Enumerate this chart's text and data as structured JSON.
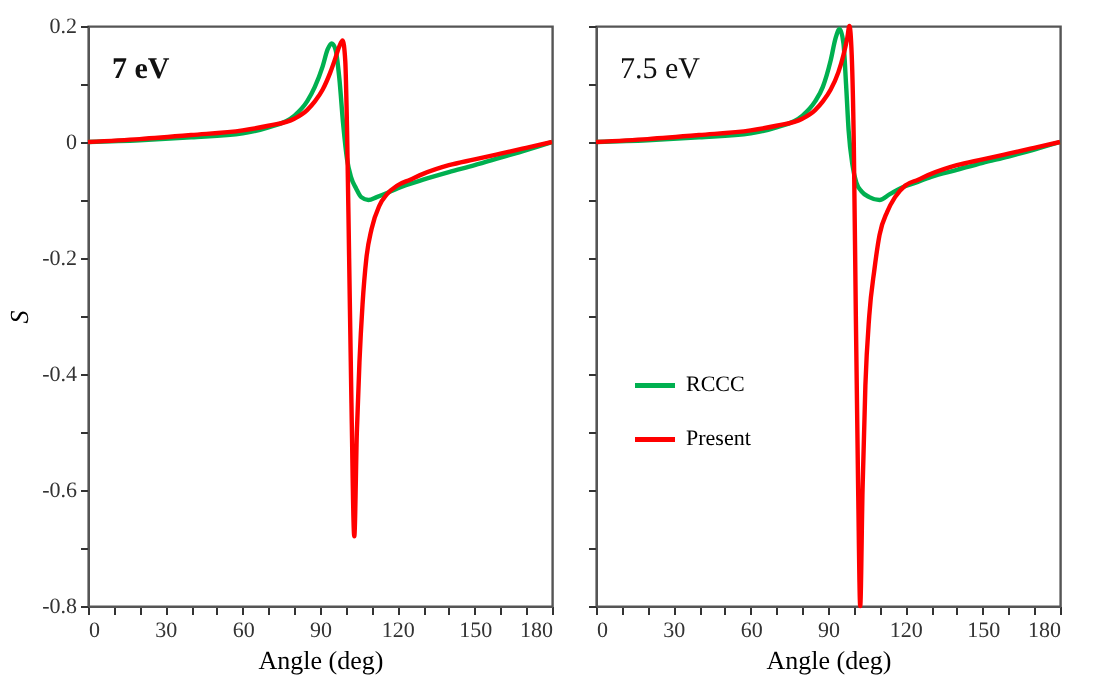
{
  "chart_data": [
    {
      "type": "line",
      "title": "7 eV",
      "xlabel": "Angle (deg)",
      "ylabel": "S",
      "xlim": [
        0,
        180
      ],
      "ylim": [
        -0.8,
        0.2
      ],
      "xticks": [
        0,
        {
          "value": 10,
          "label": null
        },
        {
          "value": 20,
          "label": null
        },
        30,
        {
          "value": 40,
          "label": null
        },
        {
          "value": 50,
          "label": null
        },
        60,
        {
          "value": 70,
          "label": null
        },
        {
          "value": 80,
          "label": null
        },
        90,
        {
          "value": 100,
          "label": null
        },
        {
          "value": 110,
          "label": null
        },
        120,
        {
          "value": 130,
          "label": null
        },
        {
          "value": 140,
          "label": null
        },
        150,
        {
          "value": 160,
          "label": null
        },
        {
          "value": 170,
          "label": null
        },
        180
      ],
      "yticks": [
        -0.8,
        {
          "value": -0.7,
          "label": null
        },
        -0.6,
        {
          "value": -0.5,
          "label": null
        },
        -0.4,
        {
          "value": -0.3,
          "label": null
        },
        -0.2,
        {
          "value": -0.1,
          "label": null
        },
        0,
        {
          "value": 0.1,
          "label": null
        },
        0.2
      ],
      "grid": false,
      "legend": false,
      "series": [
        {
          "color": "#00b050",
          "x": [
            0,
            20,
            40,
            60,
            70,
            80,
            85,
            88,
            91,
            93,
            94.5,
            96,
            97.5,
            99,
            100.5,
            102,
            104,
            106,
            108.8,
            112,
            116,
            120,
            130,
            140,
            150,
            160,
            170,
            180
          ],
          "values": [
            0,
            0.003,
            0.008,
            0.015,
            0.025,
            0.045,
            0.07,
            0.095,
            0.13,
            0.16,
            0.17,
            0.16,
            0.11,
            0.03,
            -0.03,
            -0.06,
            -0.08,
            -0.095,
            -0.1,
            -0.095,
            -0.088,
            -0.08,
            -0.065,
            -0.052,
            -0.04,
            -0.027,
            -0.014,
            0
          ]
        },
        {
          "color": "#ff0000",
          "x": [
            0,
            20,
            40,
            60,
            70,
            80,
            85,
            88,
            91,
            94,
            96,
            97.5,
            98.8,
            99.8,
            100.5,
            101.3,
            102.2,
            103.3,
            104.3,
            105.3,
            106.5,
            108,
            110,
            113,
            116,
            120,
            125,
            130,
            140,
            150,
            160,
            170,
            180
          ],
          "values": [
            0,
            0.005,
            0.012,
            0.02,
            0.028,
            0.04,
            0.055,
            0.07,
            0.09,
            0.12,
            0.145,
            0.165,
            0.175,
            0.14,
            0.02,
            -0.2,
            -0.45,
            -0.68,
            -0.5,
            -0.38,
            -0.28,
            -0.2,
            -0.15,
            -0.11,
            -0.09,
            -0.075,
            -0.065,
            -0.055,
            -0.04,
            -0.03,
            -0.02,
            -0.01,
            0
          ]
        }
      ]
    },
    {
      "type": "line",
      "title": "7.5 eV",
      "xlabel": "Angle (deg)",
      "xlim": [
        0,
        180
      ],
      "ylim": [
        -0.8,
        0.2
      ],
      "tick_labels": "x",
      "xticks": [
        0,
        {
          "value": 10,
          "label": null
        },
        {
          "value": 20,
          "label": null
        },
        30,
        {
          "value": 40,
          "label": null
        },
        {
          "value": 50,
          "label": null
        },
        60,
        {
          "value": 70,
          "label": null
        },
        {
          "value": 80,
          "label": null
        },
        90,
        {
          "value": 100,
          "label": null
        },
        {
          "value": 110,
          "label": null
        },
        120,
        {
          "value": 130,
          "label": null
        },
        {
          "value": 140,
          "label": null
        },
        150,
        {
          "value": 160,
          "label": null
        },
        {
          "value": 170,
          "label": null
        },
        180
      ],
      "yticks": [
        -0.8,
        {
          "value": -0.7,
          "label": null
        },
        -0.6,
        {
          "value": -0.5,
          "label": null
        },
        -0.4,
        {
          "value": -0.3,
          "label": null
        },
        -0.2,
        {
          "value": -0.1,
          "label": null
        },
        0,
        {
          "value": 0.1,
          "label": null
        },
        0.2
      ],
      "grid": false,
      "legend": "left",
      "series": [
        {
          "name": "RCCC",
          "color": "#00b050",
          "x": [
            0,
            20,
            40,
            60,
            70,
            80,
            85,
            88,
            91,
            93,
            94.5,
            96,
            97,
            98,
            99.5,
            101,
            103,
            106,
            110,
            114,
            118,
            124,
            130,
            140,
            150,
            160,
            170,
            180
          ],
          "values": [
            0,
            0.003,
            0.008,
            0.015,
            0.025,
            0.045,
            0.07,
            0.095,
            0.14,
            0.18,
            0.195,
            0.17,
            0.1,
            0.02,
            -0.04,
            -0.07,
            -0.085,
            -0.095,
            -0.1,
            -0.09,
            -0.08,
            -0.07,
            -0.06,
            -0.048,
            -0.036,
            -0.025,
            -0.013,
            0
          ]
        },
        {
          "name": "Present",
          "color": "#ff0000",
          "x": [
            0,
            20,
            40,
            60,
            70,
            80,
            85,
            88,
            91,
            94,
            96,
            97.5,
            98.3,
            99.2,
            100,
            100.8,
            101.7,
            102.5,
            103.4,
            104.5,
            106,
            108,
            110,
            113,
            116,
            120,
            125,
            130,
            140,
            150,
            160,
            170,
            180
          ],
          "values": [
            0,
            0.005,
            0.012,
            0.02,
            0.028,
            0.04,
            0.055,
            0.07,
            0.09,
            0.12,
            0.15,
            0.18,
            0.2,
            0.15,
            0.0,
            -0.3,
            -0.6,
            -0.8,
            -0.6,
            -0.42,
            -0.3,
            -0.22,
            -0.16,
            -0.12,
            -0.095,
            -0.075,
            -0.065,
            -0.055,
            -0.04,
            -0.03,
            -0.02,
            -0.01,
            0
          ]
        }
      ]
    }
  ]
}
